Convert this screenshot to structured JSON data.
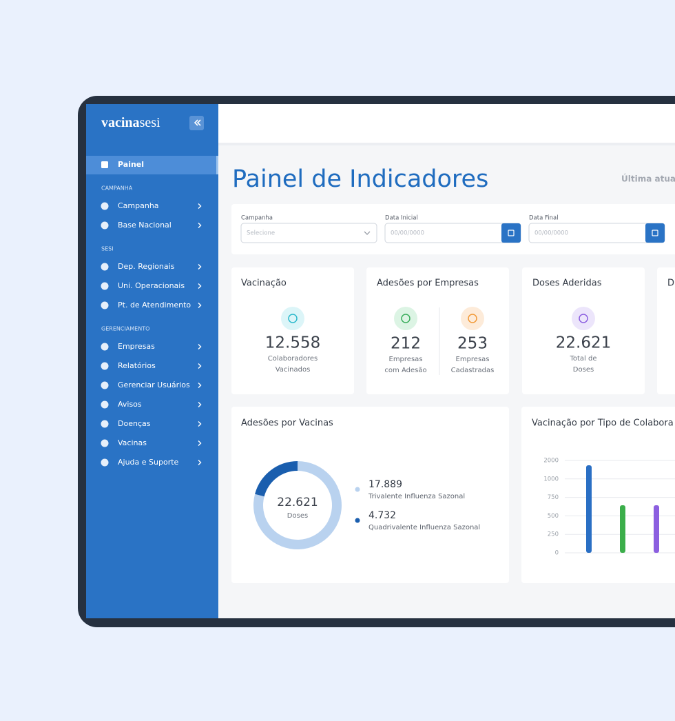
{
  "sidebar": {
    "logo_bold": "vacina",
    "logo_light": "sesi",
    "active": "Painel",
    "sections": [
      {
        "title": "CAMPANHA",
        "items": [
          "Campanha",
          "Base Nacional"
        ]
      },
      {
        "title": "SESI",
        "items": [
          "Dep. Regionais",
          "Uni. Operacionais",
          "Pt. de Atendimento"
        ]
      },
      {
        "title": "GERENCIAMENTO",
        "items": [
          "Empresas",
          "Relatórios",
          "Gerenciar Usuários",
          "Avisos",
          "Doenças",
          "Vacinas",
          "Ajuda e Suporte"
        ]
      }
    ]
  },
  "page": {
    "title": "Painel de Indicadores",
    "last_update": "Última atuali"
  },
  "filters": [
    {
      "label": "Campanha",
      "placeholder": "Selecione"
    },
    {
      "label": "Data Inicial",
      "placeholder": "00/00/0000"
    },
    {
      "label": "Data Final",
      "placeholder": "00/00/0000"
    }
  ],
  "cards": {
    "vacinacao": {
      "title": "Vacinação",
      "value": "12.558",
      "caption": [
        "Colaboradores",
        "Vacinados"
      ]
    },
    "adesoes": {
      "title": "Adesões por Empresas",
      "stats": [
        {
          "value": "212",
          "caption": [
            "Empresas",
            "com Adesão"
          ]
        },
        {
          "value": "253",
          "caption": [
            "Empresas",
            "Cadastradas"
          ]
        }
      ]
    },
    "doses": {
      "title": "Doses Aderidas",
      "value": "22.621",
      "caption": [
        "Total de",
        "Doses"
      ]
    },
    "partial": {
      "title": "D"
    }
  },
  "chart_data": [
    {
      "type": "donut",
      "title": "Adesões por Vacinas",
      "center_value": "22.621",
      "center_caption": "Doses",
      "categories": [
        "Trivalente Influenza Sazonal",
        "Quadrivalente Influenza Sazonal"
      ],
      "values": [
        17889,
        4732
      ],
      "value_labels": [
        "17.889",
        "4.732"
      ],
      "colors": [
        "#b9d2ef",
        "#1a5eae"
      ]
    },
    {
      "type": "bar",
      "title": "Vacinação por Tipo de Colabora",
      "categories": [
        null,
        null,
        null
      ],
      "values": [
        1740,
        644,
        644
      ],
      "colors": [
        "#2a6fc4",
        "#3bae4a",
        "#8c5fe0"
      ],
      "ylim": [
        0,
        2000
      ],
      "yticks": [
        0,
        250,
        500,
        750,
        1000,
        2000
      ],
      "grid": true
    }
  ]
}
